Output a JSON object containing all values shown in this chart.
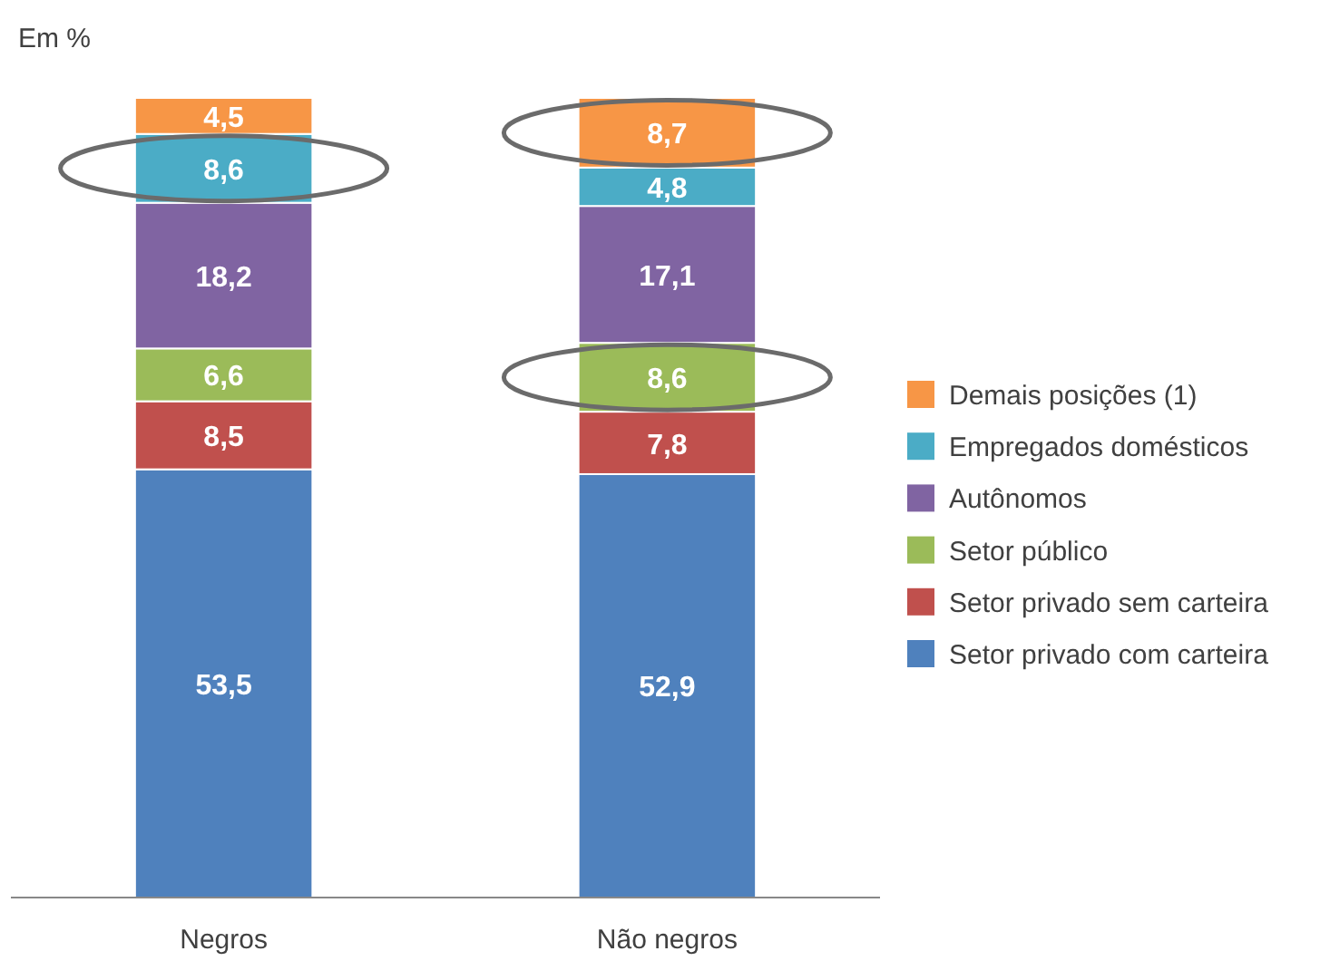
{
  "chart_data": {
    "type": "bar",
    "subtitle": "Em %",
    "categories": [
      "Negros",
      "Não negros"
    ],
    "stacked": true,
    "legend": "right",
    "series": [
      {
        "name": "Setor privado com carteira",
        "color": "#4f81bd",
        "values": [
          53.5,
          52.9
        ],
        "value_labels": [
          "53,5",
          "52,9"
        ]
      },
      {
        "name": "Setor privado sem carteira",
        "color": "#c0504d",
        "values": [
          8.5,
          7.8
        ],
        "value_labels": [
          "8,5",
          "7,8"
        ]
      },
      {
        "name": "Setor público",
        "color": "#9bbb59",
        "values": [
          6.6,
          8.6
        ],
        "value_labels": [
          "6,6",
          "8,6"
        ]
      },
      {
        "name": "Autônomos",
        "color": "#8064a2",
        "values": [
          18.2,
          17.1
        ],
        "value_labels": [
          "18,2",
          "17,1"
        ]
      },
      {
        "name": "Empregados domésticos",
        "color": "#4bacc6",
        "values": [
          8.6,
          4.8
        ],
        "value_labels": [
          "8,6",
          "4,8"
        ]
      },
      {
        "name": "Demais posições (1)",
        "color": "#f79646",
        "values": [
          4.5,
          8.7
        ],
        "value_labels": [
          "4,5",
          "8,7"
        ]
      }
    ]
  }
}
